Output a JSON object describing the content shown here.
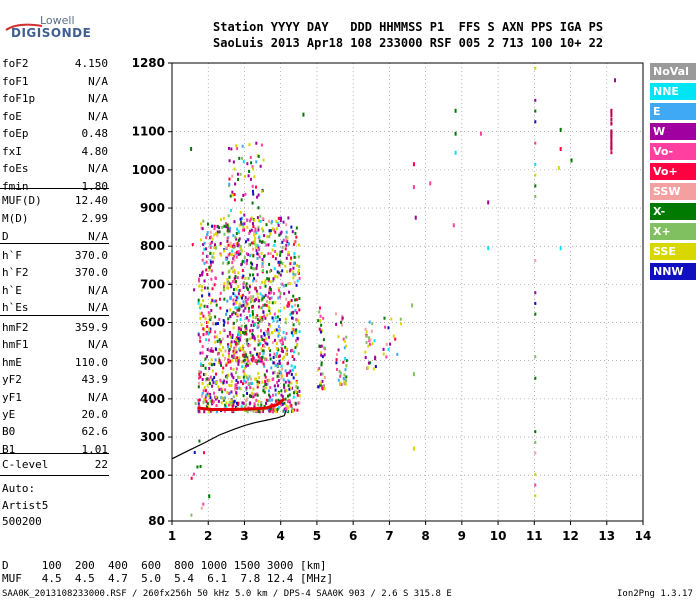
{
  "logo": {
    "line1": "Lowell",
    "line2": "DIGISONDE"
  },
  "header": {
    "row1": "Station YYYY DAY   DDD HHMMSS P1  FFS S AXN PPS IGA PS",
    "row2": "SaoLuis 2013 Apr18 108 233000 RSF 005 2 713 100 10+ 22"
  },
  "params": {
    "group1": [
      {
        "label": "foF2",
        "value": "4.150"
      },
      {
        "label": "foF1",
        "value": "N/A"
      },
      {
        "label": "foF1p",
        "value": "N/A"
      },
      {
        "label": "foE",
        "value": "N/A"
      },
      {
        "label": "foEp",
        "value": "0.48"
      },
      {
        "label": "fxI",
        "value": "4.80"
      },
      {
        "label": "foEs",
        "value": "N/A"
      },
      {
        "label": "fmin",
        "value": "1.80"
      }
    ],
    "group2": [
      {
        "label": "MUF(D)",
        "value": "12.40"
      },
      {
        "label": "M(D)",
        "value": "2.99"
      },
      {
        "label": "D",
        "value": "N/A"
      }
    ],
    "group3": [
      {
        "label": "h`F",
        "value": "370.0"
      },
      {
        "label": "h`F2",
        "value": "370.0"
      },
      {
        "label": "h`E",
        "value": "N/A"
      },
      {
        "label": "h`Es",
        "value": "N/A"
      }
    ],
    "group4": [
      {
        "label": "hmF2",
        "value": "359.9"
      },
      {
        "label": "hmF1",
        "value": "N/A"
      },
      {
        "label": "hmE",
        "value": "110.0"
      },
      {
        "label": "yF2",
        "value": "43.9"
      },
      {
        "label": "yF1",
        "value": "N/A"
      },
      {
        "label": "yE",
        "value": "20.0"
      },
      {
        "label": "B0",
        "value": "62.6"
      },
      {
        "label": "B1",
        "value": "1.01"
      }
    ],
    "group5": [
      {
        "label": "C-level",
        "value": "22"
      }
    ]
  },
  "auto": {
    "line1": "Auto:",
    "line2": "Artist5",
    "line3": "500200"
  },
  "bottom": {
    "d_row": "D     100  200  400  600  800 1000 1500 3000 [km]",
    "muf_row": "MUF   4.5  4.5  4.7  5.0  5.4  6.1  7.8 12.4 [MHz]",
    "info": "SAA0K_2013108233000.RSF / 260fx256h 50 kHz 5.0 km / DPS-4 SAA0K 903 / 2.6 S 315.8 E",
    "version": "Ion2Png 1.3.17"
  },
  "legend": [
    {
      "label": "NoVal",
      "color": "#9a9a9a"
    },
    {
      "label": "NNE",
      "color": "#00e5f5"
    },
    {
      "label": "E",
      "color": "#3fa9f5"
    },
    {
      "label": "W",
      "color": "#a000a0"
    },
    {
      "label": "Vo-",
      "color": "#ff40a0"
    },
    {
      "label": "Vo+",
      "color": "#ff0040"
    },
    {
      "label": "SSW",
      "color": "#f5a0a0"
    },
    {
      "label": "X-",
      "color": "#007a00"
    },
    {
      "label": "X+",
      "color": "#80c060"
    },
    {
      "label": "SSE",
      "color": "#d8d800"
    },
    {
      "label": "NNW",
      "color": "#1010c0"
    }
  ],
  "chart_data": {
    "type": "scatter",
    "xlim": [
      1,
      14
    ],
    "x_ticks": [
      1,
      2,
      3,
      4,
      5,
      6,
      7,
      8,
      9,
      10,
      11,
      12,
      13,
      14
    ],
    "ylim": [
      80,
      1280
    ],
    "y_ticks": [
      80,
      200,
      300,
      400,
      500,
      600,
      700,
      800,
      900,
      1000,
      1100,
      1280
    ],
    "grid": true,
    "legend_position": "right",
    "profile_curve": {
      "x": [
        1.0,
        1.4,
        1.9,
        2.3,
        2.7,
        3.0,
        3.3,
        3.6,
        3.9,
        4.1,
        4.15
      ],
      "y": [
        243,
        262,
        285,
        305,
        320,
        330,
        338,
        344,
        350,
        356,
        370
      ]
    },
    "trace": {
      "x": [
        1.7,
        1.9,
        2.1,
        2.4,
        2.7,
        3.0,
        3.3,
        3.6,
        3.9,
        4.1
      ],
      "y": [
        376,
        374,
        372,
        372,
        372,
        373,
        374,
        376,
        385,
        400
      ]
    },
    "echo_clusters": [
      {
        "x": [
          1.7,
          4.5
        ],
        "y": [
          370,
          880
        ],
        "density": 1200
      },
      {
        "x": [
          2.5,
          3.5
        ],
        "y": [
          500,
          1080
        ],
        "density": 280
      },
      {
        "x": [
          5.0,
          5.2
        ],
        "y": [
          430,
          650
        ],
        "density": 40
      },
      {
        "x": [
          5.5,
          5.8
        ],
        "y": [
          440,
          640
        ],
        "density": 40
      },
      {
        "x": [
          6.3,
          6.6
        ],
        "y": [
          480,
          620
        ],
        "density": 25
      },
      {
        "x": [
          6.8,
          7.3
        ],
        "y": [
          500,
          620
        ],
        "density": 15
      },
      {
        "x": [
          1.5,
          1.9
        ],
        "y": [
          90,
          830
        ],
        "density": 14
      }
    ],
    "vertical_strips": [
      {
        "x": 11.0,
        "y": [
          150,
          1270
        ]
      },
      {
        "x": 13.1,
        "y": [
          1040,
          1160
        ]
      }
    ],
    "sparse_points": [
      [
        7.65,
        960
      ],
      [
        7.65,
        1020
      ],
      [
        7.7,
        880
      ],
      [
        7.6,
        650
      ],
      [
        7.65,
        470
      ],
      [
        7.65,
        275
      ],
      [
        8.8,
        1160
      ],
      [
        8.8,
        1100
      ],
      [
        8.8,
        1050
      ],
      [
        8.75,
        860
      ],
      [
        8.1,
        970
      ],
      [
        9.7,
        920
      ],
      [
        9.7,
        800
      ],
      [
        9.5,
        1100
      ],
      [
        11.7,
        1110
      ],
      [
        11.7,
        1060
      ],
      [
        11.65,
        1010
      ],
      [
        11.7,
        800
      ],
      [
        13.2,
        1240
      ],
      [
        12.0,
        1030
      ],
      [
        1.5,
        1060
      ],
      [
        2.0,
        150
      ],
      [
        4.6,
        1150
      ]
    ]
  }
}
